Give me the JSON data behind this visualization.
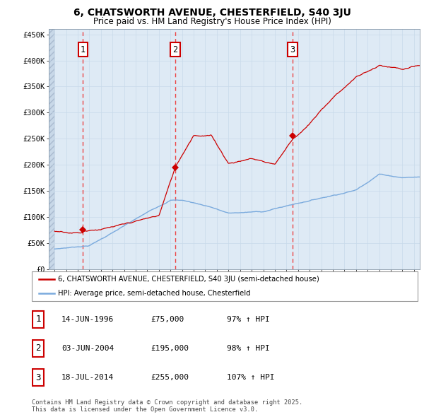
{
  "title_line1": "6, CHATSWORTH AVENUE, CHESTERFIELD, S40 3JU",
  "title_line2": "Price paid vs. HM Land Registry's House Price Index (HPI)",
  "ylabel_ticks": [
    "£0",
    "£50K",
    "£100K",
    "£150K",
    "£200K",
    "£250K",
    "£300K",
    "£350K",
    "£400K",
    "£450K"
  ],
  "ytick_values": [
    0,
    50000,
    100000,
    150000,
    200000,
    250000,
    300000,
    350000,
    400000,
    450000
  ],
  "ylim": [
    0,
    460000
  ],
  "xlim_start": 1993.5,
  "xlim_end": 2025.5,
  "sale_points": [
    {
      "year": 1996.45,
      "price": 75000,
      "label": "1"
    },
    {
      "year": 2004.42,
      "price": 195000,
      "label": "2"
    },
    {
      "year": 2014.54,
      "price": 255000,
      "label": "3"
    }
  ],
  "legend_red": "6, CHATSWORTH AVENUE, CHESTERFIELD, S40 3JU (semi-detached house)",
  "legend_blue": "HPI: Average price, semi-detached house, Chesterfield",
  "table_rows": [
    {
      "num": "1",
      "date": "14-JUN-1996",
      "price": "£75,000",
      "hpi": "97% ↑ HPI"
    },
    {
      "num": "2",
      "date": "03-JUN-2004",
      "price": "£195,000",
      "hpi": "98% ↑ HPI"
    },
    {
      "num": "3",
      "date": "18-JUL-2014",
      "price": "£255,000",
      "hpi": "107% ↑ HPI"
    }
  ],
  "footnote": "Contains HM Land Registry data © Crown copyright and database right 2025.\nThis data is licensed under the Open Government Licence v3.0.",
  "red_color": "#cc0000",
  "blue_color": "#7aaadd",
  "vline_color": "#ee3333",
  "grid_color": "#c8daea",
  "bg_plot": "#deeaf5",
  "hatch_bg": "#c8d8e8"
}
